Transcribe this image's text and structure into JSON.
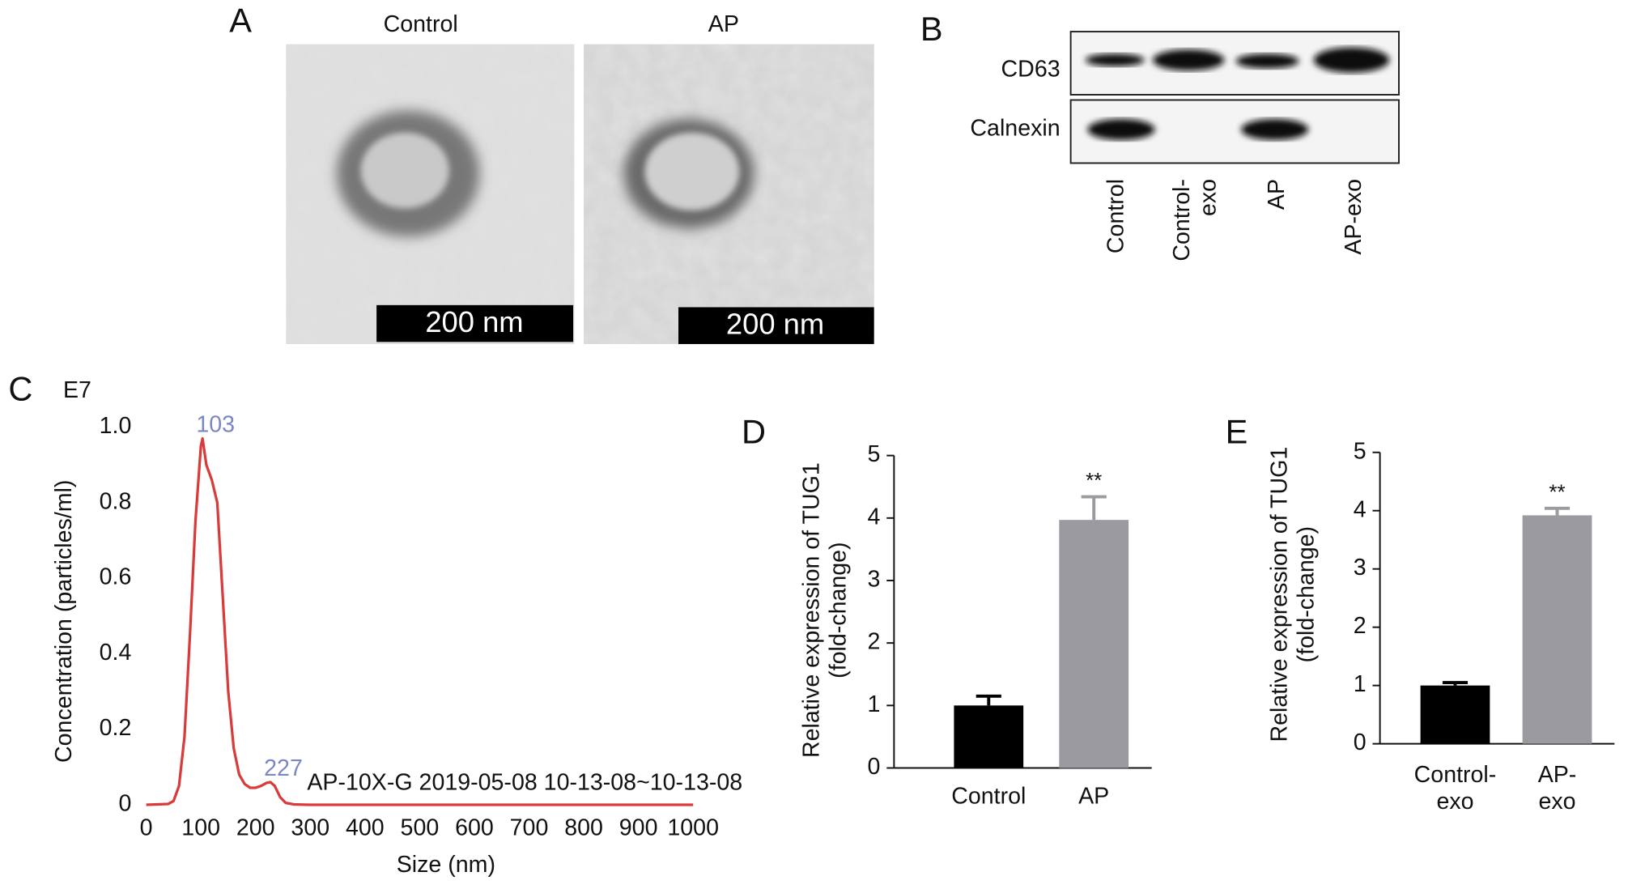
{
  "panels": {
    "A": {
      "letter": "A",
      "labels": [
        "Control",
        "AP"
      ],
      "scale_bars": [
        "200 nm",
        "200 nm"
      ]
    },
    "B": {
      "letter": "B",
      "rows": [
        "CD63",
        "Calnexin"
      ],
      "lanes": [
        "Control",
        "Control-\nexo",
        "AP",
        "AP-exo"
      ]
    },
    "C": {
      "letter": "C"
    },
    "D": {
      "letter": "D"
    },
    "E": {
      "letter": "E"
    }
  },
  "chart_data": [
    {
      "type": "line",
      "multiplier_label": "E7",
      "xlabel": "Size (nm)",
      "ylabel": "Concentration (particles/ml)",
      "annotation": "AP-10X-G 2019-05-08 10-13-08~10-13-08",
      "x": [
        0,
        40,
        50,
        60,
        70,
        80,
        90,
        100,
        103,
        110,
        120,
        130,
        140,
        150,
        160,
        170,
        180,
        190,
        200,
        210,
        220,
        227,
        235,
        245,
        255,
        270,
        300,
        1000
      ],
      "y": [
        0,
        0.002,
        0.01,
        0.05,
        0.18,
        0.45,
        0.75,
        0.95,
        0.97,
        0.9,
        0.86,
        0.8,
        0.55,
        0.3,
        0.15,
        0.08,
        0.055,
        0.045,
        0.045,
        0.05,
        0.058,
        0.06,
        0.05,
        0.02,
        0.005,
        0.001,
        0,
        0
      ],
      "peaks": [
        103,
        227
      ],
      "color": "#d93a3a",
      "xlim": [
        0,
        1000
      ],
      "xticks": [
        0,
        100,
        200,
        300,
        400,
        500,
        600,
        700,
        800,
        900,
        1000
      ],
      "ylim": [
        0,
        1
      ],
      "yticks": [
        0,
        {
          "value": 0.2,
          "label": "0.2"
        },
        {
          "value": 0.4,
          "label": "0.4"
        },
        {
          "value": 0.6,
          "label": "0.6"
        },
        {
          "value": 0.8,
          "label": "0.8"
        },
        {
          "value": 1,
          "label": "1.0"
        }
      ]
    },
    {
      "type": "bar",
      "ylabel": "Relative expression of TUG1\n(fold-change)",
      "categories": [
        "Control",
        "AP"
      ],
      "values": [
        1.0,
        3.97
      ],
      "errors": [
        0.15,
        0.37
      ],
      "colors": [
        "#000000",
        "#9a9aa0"
      ],
      "significance_labels": [
        null,
        "**"
      ],
      "ylim": [
        0,
        5
      ],
      "yticks": [
        0,
        1,
        2,
        3,
        4,
        5
      ]
    },
    {
      "type": "bar",
      "ylabel": "Relative expression of TUG1\n(fold-change)",
      "categories": [
        "Control-\nexo",
        "AP-\nexo"
      ],
      "values": [
        1.0,
        3.92
      ],
      "errors": [
        0.05,
        0.12
      ],
      "colors": [
        "#000000",
        "#9a9aa0"
      ],
      "significance_labels": [
        null,
        "**"
      ],
      "ylim": [
        0,
        5
      ],
      "yticks": [
        0,
        1,
        2,
        3,
        4,
        5
      ]
    }
  ]
}
